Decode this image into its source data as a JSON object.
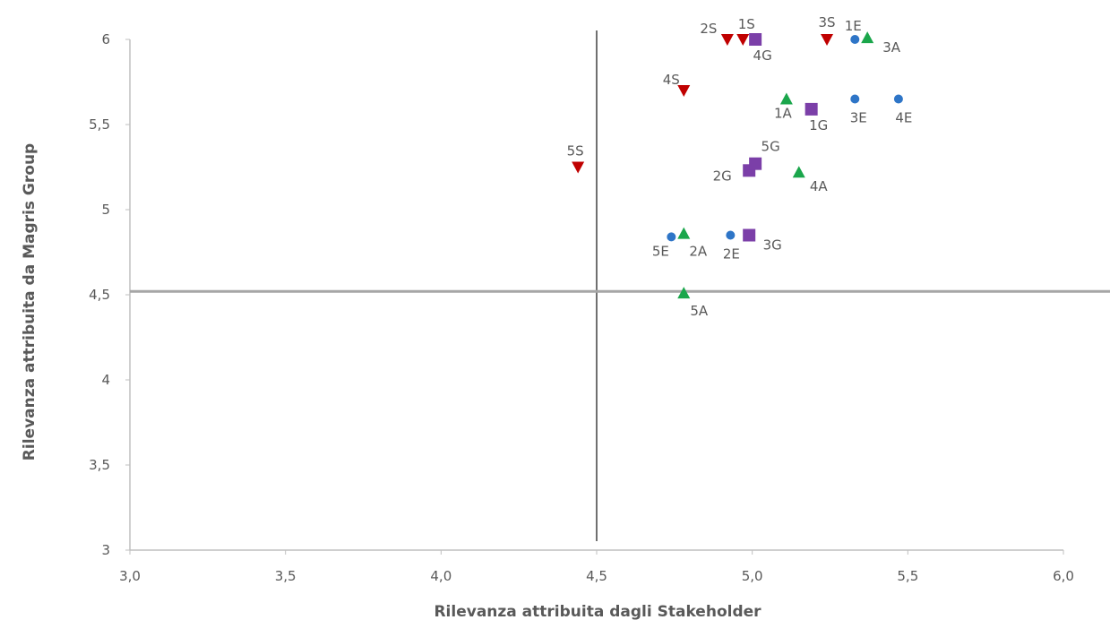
{
  "chart_data": {
    "type": "scatter",
    "title": "",
    "xlabel": "Rilevanza attribuita dagli Stakeholder",
    "ylabel": "Rilevanza attribuita da Magris Group",
    "xlim": [
      3.0,
      6.0
    ],
    "ylim": [
      3.0,
      6.0
    ],
    "x_ticks": [
      "3,0",
      "3,5",
      "4,0",
      "4,5",
      "5,0",
      "5,5",
      "6,0"
    ],
    "y_ticks": [
      "3",
      "3,5",
      "4",
      "4,5",
      "5",
      "5,5",
      "6"
    ],
    "reference_lines": {
      "vertical_x": 4.5,
      "horizontal_y": 4.52
    },
    "series": [
      {
        "marker": "circle",
        "color": "#2e75c7",
        "points": [
          {
            "label": "1E",
            "x": 5.33,
            "y": 6.0
          },
          {
            "label": "2E",
            "x": 4.93,
            "y": 4.85
          },
          {
            "label": "3E",
            "x": 5.33,
            "y": 5.65
          },
          {
            "label": "4E",
            "x": 5.47,
            "y": 5.65
          },
          {
            "label": "5E",
            "x": 4.74,
            "y": 4.84
          }
        ]
      },
      {
        "marker": "triangle-up",
        "color": "#1aa64b",
        "points": [
          {
            "label": "1A",
            "x": 5.11,
            "y": 5.65
          },
          {
            "label": "2A",
            "x": 4.78,
            "y": 4.86
          },
          {
            "label": "3A",
            "x": 5.37,
            "y": 6.01
          },
          {
            "label": "4A",
            "x": 5.15,
            "y": 5.22
          },
          {
            "label": "5A",
            "x": 4.78,
            "y": 4.51
          }
        ]
      },
      {
        "marker": "square",
        "color": "#7b3fa8",
        "points": [
          {
            "label": "1G",
            "x": 5.19,
            "y": 5.59
          },
          {
            "label": "2G",
            "x": 4.99,
            "y": 5.23
          },
          {
            "label": "3G",
            "x": 4.99,
            "y": 4.85
          },
          {
            "label": "4G",
            "x": 5.01,
            "y": 6.0
          },
          {
            "label": "5G",
            "x": 5.01,
            "y": 5.27
          }
        ]
      },
      {
        "marker": "triangle-down",
        "color": "#c00000",
        "points": [
          {
            "label": "1S",
            "x": 4.97,
            "y": 6.0
          },
          {
            "label": "2S",
            "x": 4.92,
            "y": 6.0
          },
          {
            "label": "3S",
            "x": 5.24,
            "y": 6.0
          },
          {
            "label": "4S",
            "x": 4.78,
            "y": 5.7
          },
          {
            "label": "5S",
            "x": 4.44,
            "y": 5.25
          }
        ]
      }
    ]
  }
}
